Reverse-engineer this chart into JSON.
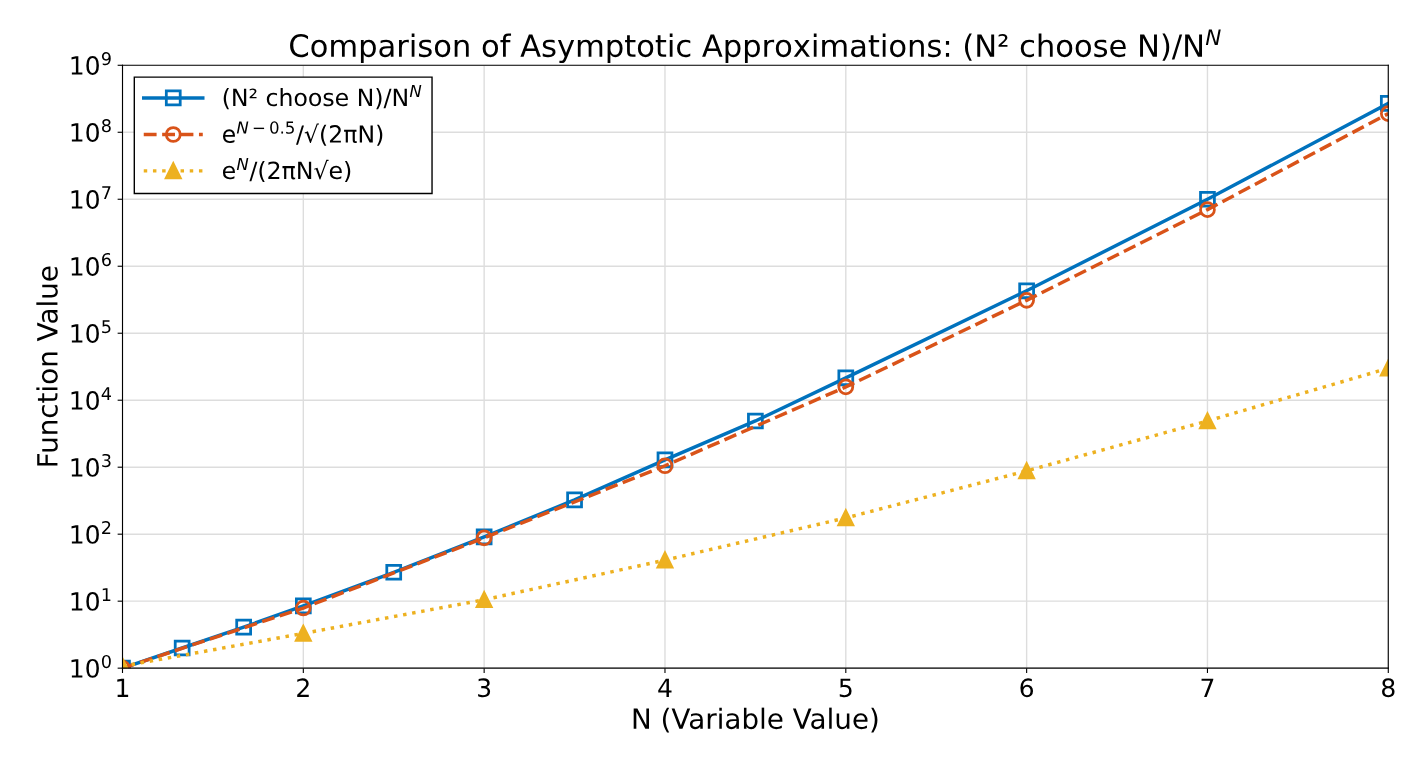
{
  "chart_data": {
    "type": "line",
    "title": "Comparison of Asymptotic Approximations: (N² choose N)/N$^{N}$",
    "xlabel": "N (Variable Value)",
    "ylabel": "Function Value",
    "log": "y",
    "grid": true,
    "legend": "top left",
    "xlim": [
      1,
      8
    ],
    "xticks": [
      1,
      2,
      3,
      4,
      5,
      6,
      7,
      8
    ],
    "ylim": [
      1,
      1000000000
    ],
    "yticks": [
      {
        "value": 1,
        "label": "10$^{0}$"
      },
      {
        "value": 10,
        "label": "10$^{1}$"
      },
      {
        "value": 100,
        "label": "10$^{2}$"
      },
      {
        "value": 1000,
        "label": "10$^{3}$"
      },
      {
        "value": 10000,
        "label": "10$^{4}$"
      },
      {
        "value": 100000,
        "label": "10$^{5}$"
      },
      {
        "value": 1000000,
        "label": "10$^{6}$"
      },
      {
        "value": 10000000,
        "label": "10$^{7}$"
      },
      {
        "value": 100000000,
        "label": "10$^{8}$"
      },
      {
        "value": 1000000000,
        "label": "10$^{9}$"
      }
    ],
    "series": [
      {
        "name": "(N² choose N)/N$^{N}$",
        "color": "#0072bd",
        "marker": "square",
        "line_style": "solid",
        "x": [
          1,
          1.33,
          1.67,
          2,
          2.5,
          3,
          3.5,
          4,
          4.5,
          5,
          6,
          7,
          8
        ],
        "values": [
          1,
          2,
          4.1,
          8.5,
          27,
          91,
          325,
          1290,
          4900,
          21600,
          430000,
          10000000,
          270000000
        ]
      },
      {
        "name": "e$^{N−0.5}$/√(2πN)",
        "color": "#d95319",
        "marker": "circle",
        "line_style": "dashed",
        "x": [
          1,
          2,
          3,
          4,
          5,
          6,
          7,
          8
        ],
        "values": [
          1,
          7.9,
          88,
          1050,
          15800,
          310000,
          7000000,
          190000000
        ]
      },
      {
        "name": "e$^{N}$/(2πN√e)",
        "color": "#edb120",
        "marker": "triangle",
        "line_style": "dotted",
        "x": [
          1,
          2,
          3,
          4,
          5,
          6,
          7,
          8
        ],
        "values": [
          1.07,
          3.3,
          10.5,
          41,
          175,
          880,
          4900,
          30000
        ]
      }
    ]
  }
}
